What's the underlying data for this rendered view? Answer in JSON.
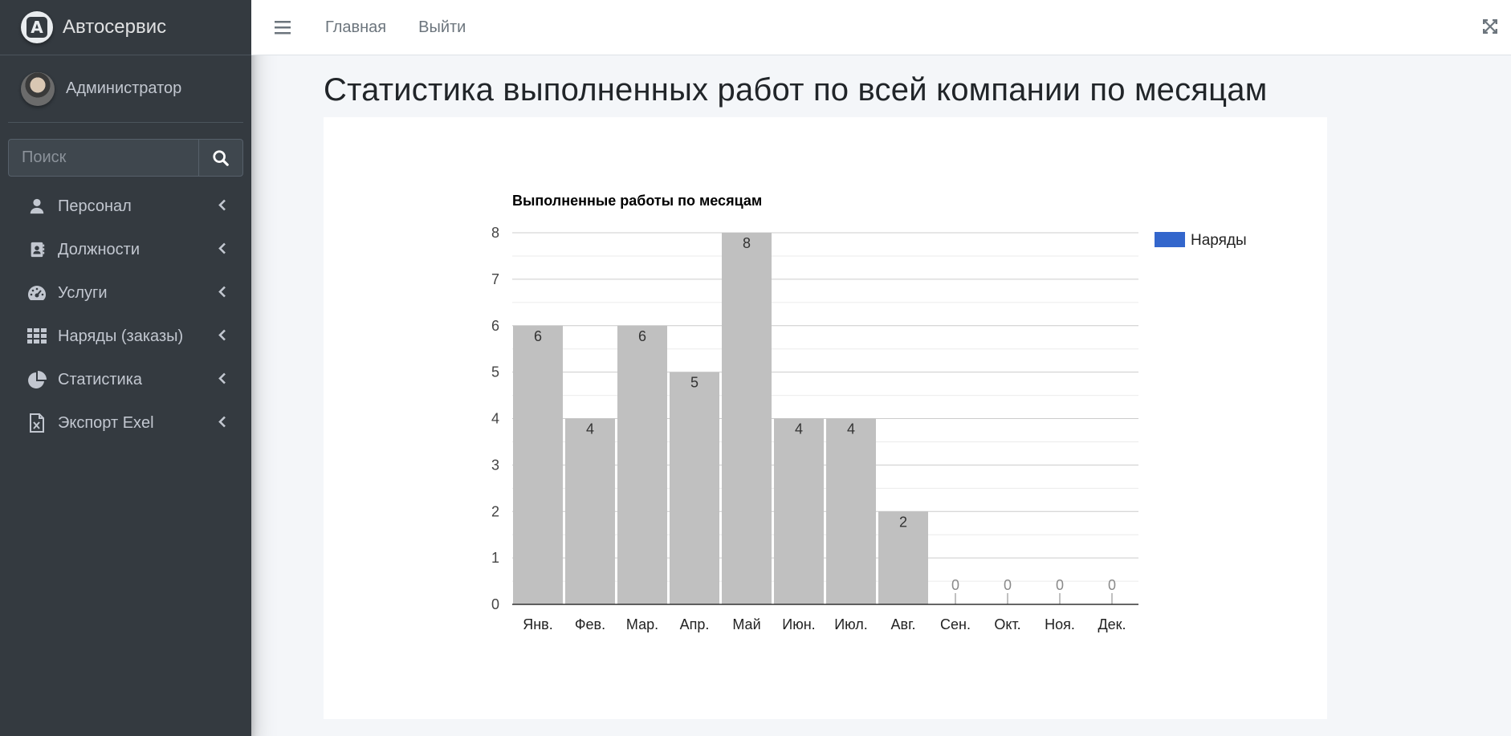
{
  "brand": {
    "name": "Автосервис",
    "logo_letter": "A"
  },
  "user": {
    "name": "Администратор"
  },
  "search": {
    "placeholder": "Поиск"
  },
  "sidebar": {
    "items": [
      {
        "label": "Персонал",
        "icon": "user-icon"
      },
      {
        "label": "Должности",
        "icon": "address-book-icon"
      },
      {
        "label": "Услуги",
        "icon": "tachometer-icon"
      },
      {
        "label": "Наряды (заказы)",
        "icon": "grid-icon"
      },
      {
        "label": "Статистика",
        "icon": "pie-chart-icon"
      },
      {
        "label": "Экспорт Exel",
        "icon": "file-excel-icon"
      }
    ]
  },
  "topbar": {
    "home_label": "Главная",
    "logout_label": "Выйти"
  },
  "page": {
    "title": "Статистика выполненных работ по всей компании по месяцам"
  },
  "colors": {
    "bar": "#c0c0c0",
    "legend": "#3366cc",
    "sidebar_bg": "#343a40"
  },
  "chart_data": {
    "type": "bar",
    "title": "Выполненные работы по месяцам",
    "categories": [
      "Янв.",
      "Фев.",
      "Мар.",
      "Апр.",
      "Май",
      "Июн.",
      "Июл.",
      "Авг.",
      "Сен.",
      "Окт.",
      "Ноя.",
      "Дек."
    ],
    "series": [
      {
        "name": "Наряды",
        "values": [
          6,
          4,
          6,
          5,
          8,
          4,
          4,
          2,
          0,
          0,
          0,
          0
        ]
      }
    ],
    "ylim": [
      0,
      8
    ],
    "yticks": [
      0,
      1,
      2,
      3,
      4,
      5,
      6,
      7,
      8
    ],
    "legend": "right",
    "grid": true
  }
}
